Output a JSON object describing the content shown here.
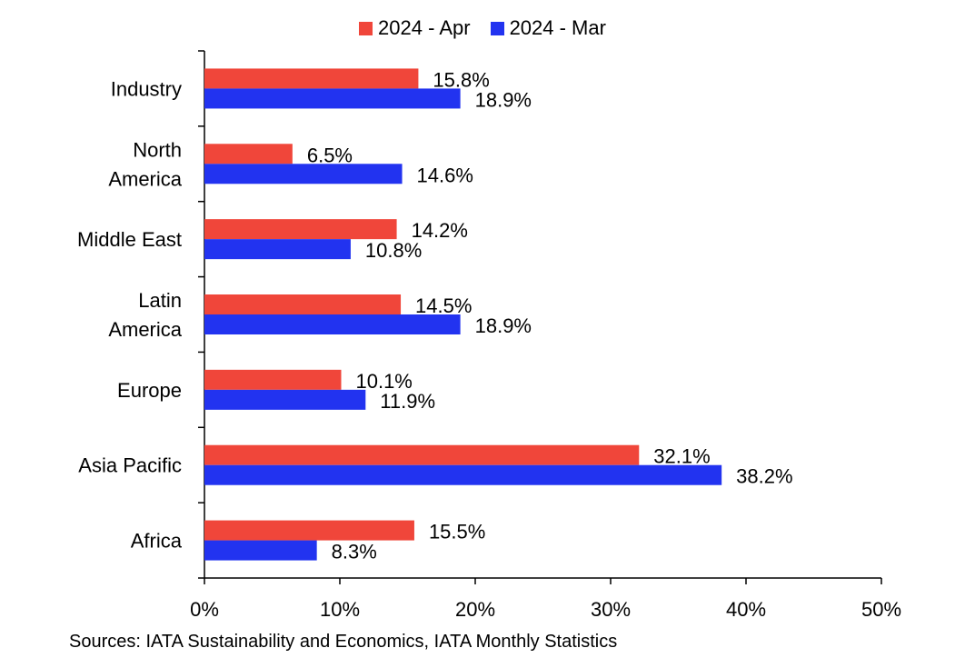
{
  "colors": {
    "apr": "#f0463a",
    "mar": "#2233f0"
  },
  "chart_data": {
    "type": "bar",
    "orientation": "horizontal",
    "categories": [
      "Industry",
      "North America",
      "Middle East",
      "Latin America",
      "Europe",
      "Asia Pacific",
      "Africa"
    ],
    "category_lines": [
      [
        "Industry"
      ],
      [
        "North",
        "America"
      ],
      [
        "Middle East"
      ],
      [
        "Latin",
        "America"
      ],
      [
        "Europe"
      ],
      [
        "Asia Pacific"
      ],
      [
        "Africa"
      ]
    ],
    "series": [
      {
        "name": "2024 - Apr",
        "values": [
          15.8,
          6.5,
          14.2,
          14.5,
          10.1,
          32.1,
          15.5
        ]
      },
      {
        "name": "2024 - Mar",
        "values": [
          18.9,
          14.6,
          10.8,
          18.9,
          11.9,
          38.2,
          8.3
        ]
      }
    ],
    "data_labels": [
      [
        "15.8%",
        "6.5%",
        "14.2%",
        "14.5%",
        "10.1%",
        "32.1%",
        "15.5%"
      ],
      [
        "18.9%",
        "14.6%",
        "10.8%",
        "18.9%",
        "11.9%",
        "38.2%",
        "8.3%"
      ]
    ],
    "xlim": [
      0,
      50
    ],
    "xticks": [
      0,
      10,
      20,
      30,
      40,
      50
    ],
    "xtick_labels": [
      "0%",
      "10%",
      "20%",
      "30%",
      "40%",
      "50%"
    ],
    "legend_position": "top-center",
    "grid": false
  },
  "legend": {
    "apr": "2024 - Apr",
    "mar": "2024 - Mar"
  },
  "source": "Sources: IATA Sustainability and Economics, IATA Monthly Statistics"
}
